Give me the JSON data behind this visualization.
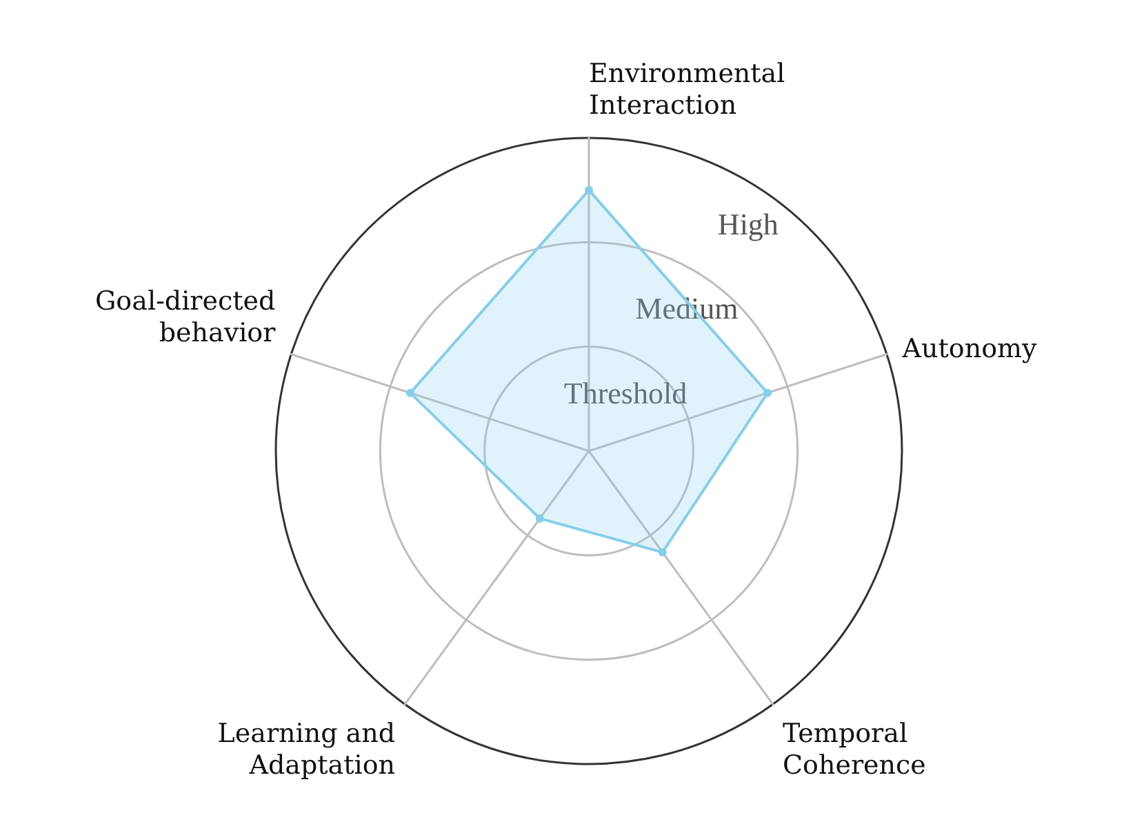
{
  "chart_data": {
    "type": "radar",
    "categories": [
      "Environmental\nInteraction",
      "Autonomy",
      "Temporal\nCoherence",
      "Learning and\nAdaptation",
      "Goal-directed\nbehavior"
    ],
    "series": [
      {
        "color": "#87ceeb",
        "values": [
          2.5,
          1.8,
          1.2,
          0.8,
          1.8
        ]
      }
    ],
    "ylim": [
      0,
      3
    ],
    "yticks": [
      {
        "value": 1,
        "label": "Threshold"
      },
      {
        "value": 2,
        "label": "Medium"
      },
      {
        "value": 3,
        "label": "High"
      }
    ],
    "grid": true,
    "marker": "circle"
  }
}
